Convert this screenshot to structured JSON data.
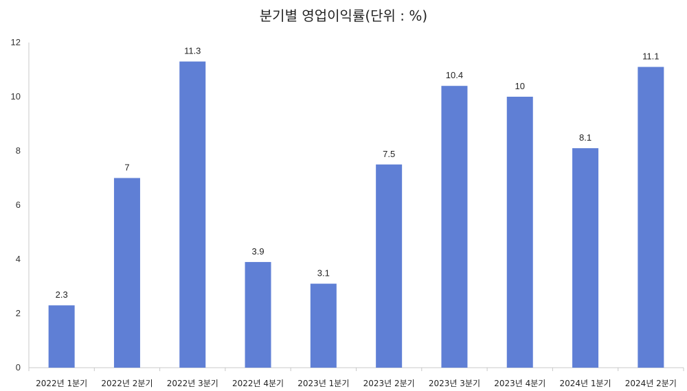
{
  "chart_data": {
    "type": "bar",
    "title": "분기별 영업이익률(단위 : %)",
    "xlabel": "",
    "ylabel": "",
    "categories": [
      "2022년 1분기",
      "2022년 2분기",
      "2022년 3분기",
      "2022년 4분기",
      "2023년 1분기",
      "2023년 2분기",
      "2023년 3분기",
      "2023년 4분기",
      "2024년 1분기",
      "2024년 2분기"
    ],
    "values": [
      2.3,
      7,
      11.3,
      3.9,
      3.1,
      7.5,
      10.4,
      10,
      8.1,
      11.1
    ],
    "ylim": [
      0,
      12
    ],
    "yticks": [
      0,
      2,
      4,
      6,
      8,
      10,
      12
    ],
    "grid": false,
    "legend": "none",
    "bar_color": "#5f7fd5",
    "axis_color": "#c8c8c8"
  }
}
